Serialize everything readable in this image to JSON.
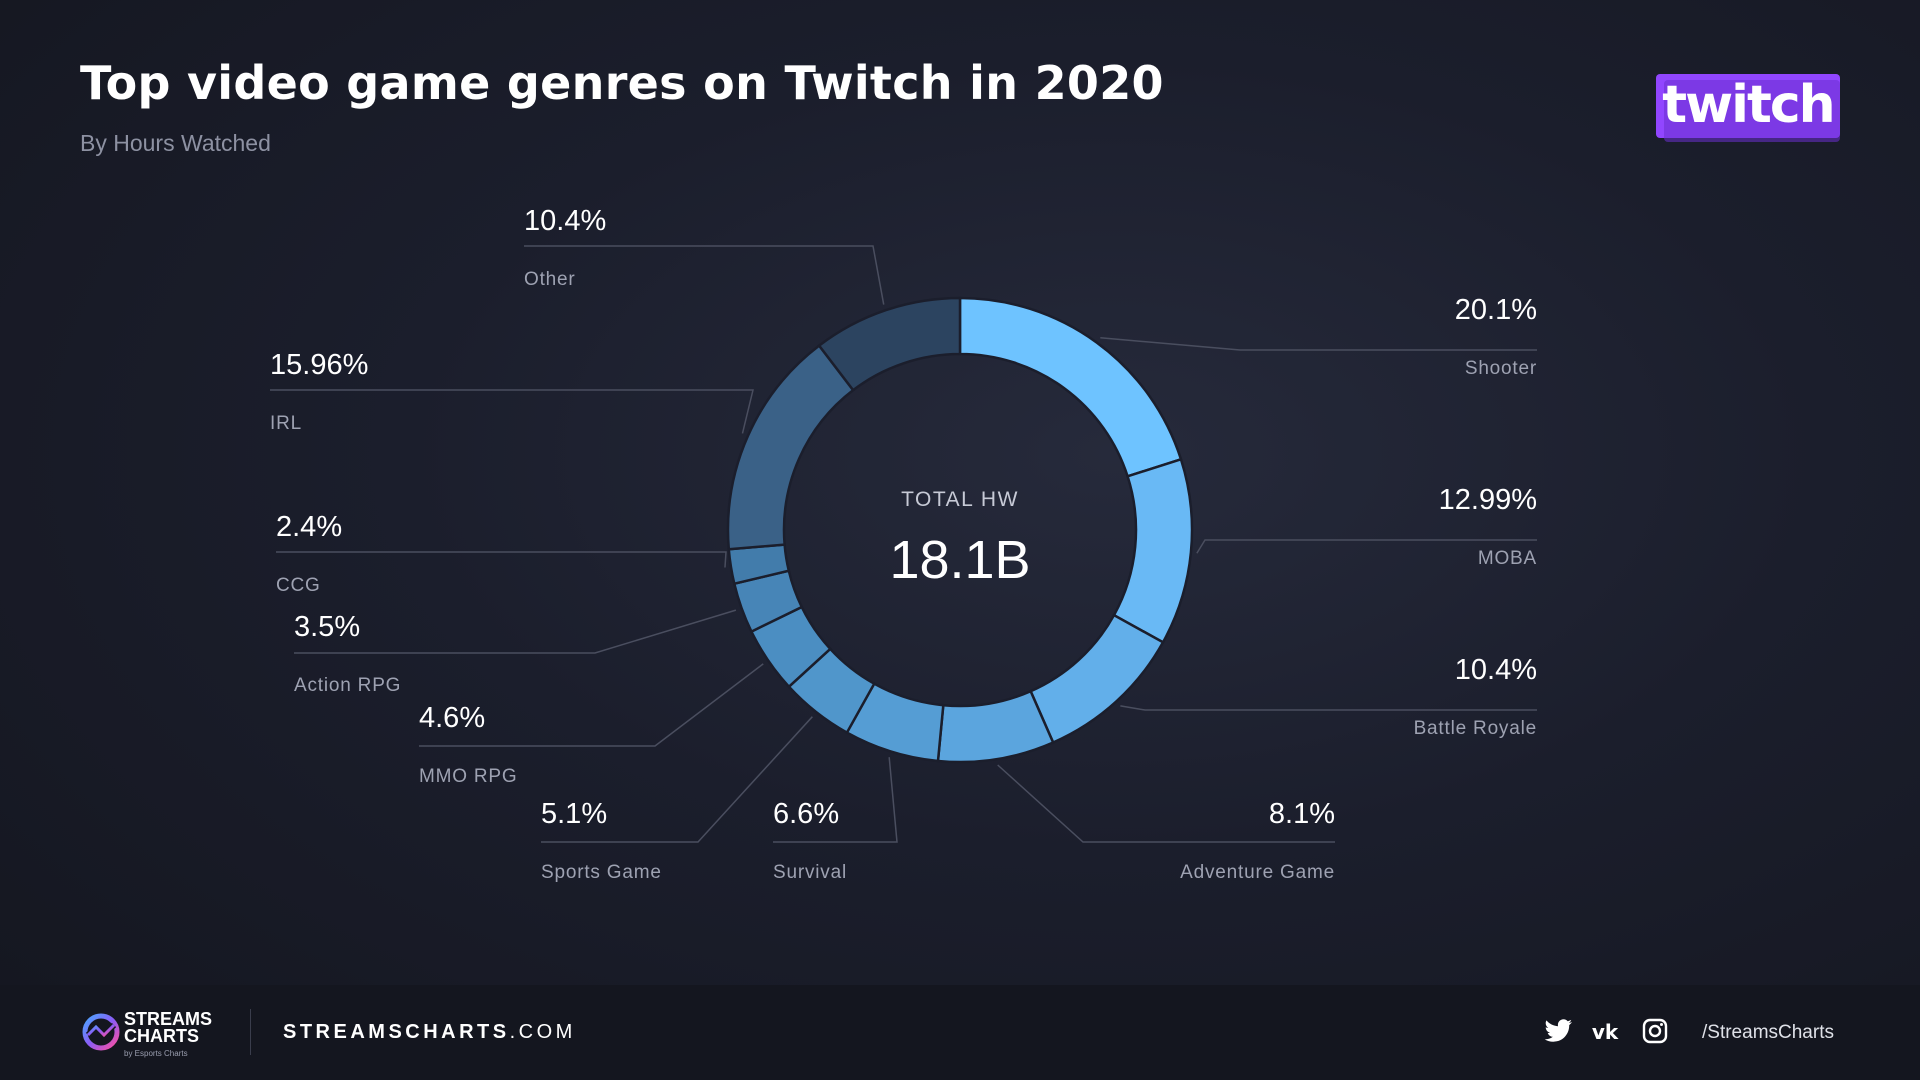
{
  "header": {
    "title": "Top video game genres on Twitch in 2020",
    "subtitle": "By Hours Watched",
    "logo_text": "twitch",
    "logo_color": "#9146ff"
  },
  "chart_data": {
    "type": "pie",
    "style": "donut",
    "center_label": "TOTAL HW",
    "center_value": "18.1B",
    "slices": [
      {
        "label": "Shooter",
        "display": "20.1%",
        "value": 20.1,
        "color": "#6ec3ff"
      },
      {
        "label": "MOBA",
        "display": "12.99%",
        "value": 12.99,
        "color": "#69b9f5"
      },
      {
        "label": "Battle Royale",
        "display": "10.4%",
        "value": 10.4,
        "color": "#62afea"
      },
      {
        "label": "Adventure Game",
        "display": "8.1%",
        "value": 8.1,
        "color": "#5ba5de"
      },
      {
        "label": "Survival",
        "display": "6.6%",
        "value": 6.6,
        "color": "#559dd4"
      },
      {
        "label": "Sports Game",
        "display": "5.1%",
        "value": 5.1,
        "color": "#5096cb"
      },
      {
        "label": "MMO RPG",
        "display": "4.6%",
        "value": 4.6,
        "color": "#4b8ec2"
      },
      {
        "label": "Action RPG",
        "display": "3.5%",
        "value": 3.5,
        "color": "#4785b7"
      },
      {
        "label": "CCG",
        "display": "2.4%",
        "value": 2.4,
        "color": "#427cab"
      },
      {
        "label": "IRL",
        "display": "15.96%",
        "value": 15.96,
        "color": "#3a6187"
      },
      {
        "label": "Other",
        "display": "10.4%",
        "value": 10.4,
        "color": "#2c4460"
      }
    ]
  },
  "footer": {
    "brand_line1": "STREAMS",
    "brand_line2": "CHARTS",
    "brand_by": "by Esports Charts",
    "site_bold": "STREAMSCHARTS",
    "site_rest": ".COM",
    "social_icons": [
      "twitter-icon",
      "vk-icon",
      "instagram-icon"
    ],
    "handle": "/StreamsCharts"
  }
}
